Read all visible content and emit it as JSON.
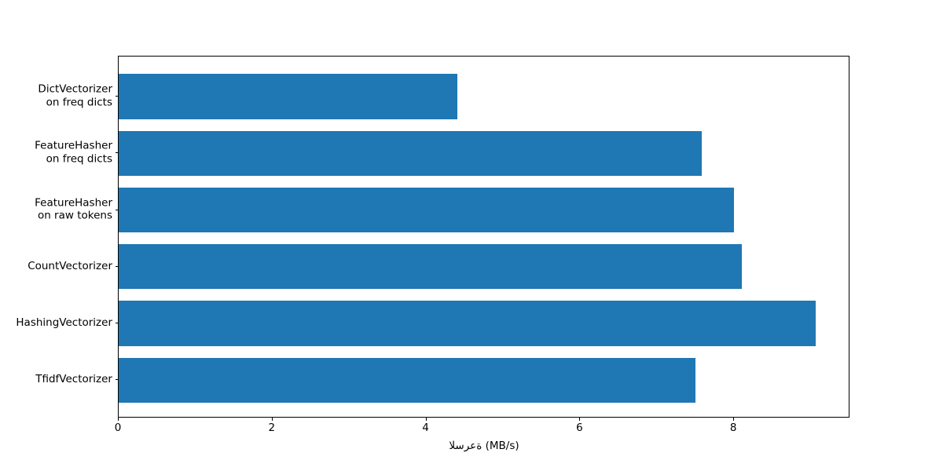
{
  "chart_data": {
    "type": "bar",
    "orientation": "horizontal",
    "title": "",
    "xlabel": "السرعة (MB/s)",
    "ylabel": "",
    "categories": [
      "DictVectorizer\non freq dicts",
      "FeatureHasher\non freq dicts",
      "FeatureHasher\non raw tokens",
      "CountVectorizer",
      "HashingVectorizer",
      "TfidfVectorizer"
    ],
    "values": [
      4.4,
      7.58,
      8.0,
      8.1,
      9.06,
      7.5
    ],
    "xlim": [
      0,
      9.51
    ],
    "xticks": [
      0,
      2,
      4,
      6,
      8
    ],
    "bar_color": "#1f77b4",
    "grid": false,
    "legend": null,
    "background_color": "#ffffff",
    "spine_color": "#000000"
  }
}
